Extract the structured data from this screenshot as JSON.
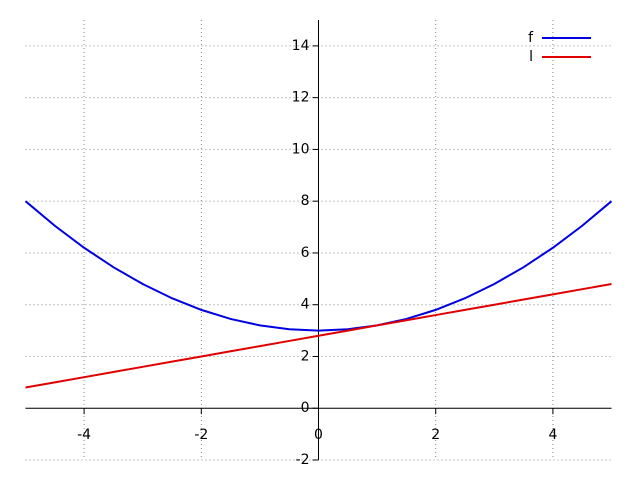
{
  "chart_data": {
    "type": "line",
    "x": [
      -5,
      -4.5,
      -4,
      -3.5,
      -3,
      -2.5,
      -2,
      -1.5,
      -1,
      -0.5,
      0,
      0.5,
      1,
      1.5,
      2,
      2.5,
      3,
      3.5,
      4,
      4.5,
      5
    ],
    "series": [
      {
        "name": "f",
        "color": "#0000e0",
        "values": [
          8,
          7.05,
          6.2,
          5.45,
          4.8,
          4.25,
          3.8,
          3.45,
          3.2,
          3.05,
          3,
          3.05,
          3.2,
          3.45,
          3.8,
          4.25,
          4.8,
          5.45,
          6.2,
          7.05,
          8
        ]
      },
      {
        "name": "l",
        "color": "#e00000",
        "values": [
          0.8,
          1.0,
          1.2,
          1.4,
          1.6,
          1.8,
          2.0,
          2.2,
          2.4,
          2.6,
          2.8,
          3.0,
          3.2,
          3.4,
          3.6,
          3.8,
          4.0,
          4.2,
          4.4,
          4.6,
          4.8
        ]
      }
    ],
    "xlim": [
      -5,
      5
    ],
    "ylim": [
      -2,
      15
    ],
    "xticks": [
      -4,
      -2,
      0,
      2,
      4
    ],
    "yticks": [
      -2,
      0,
      2,
      4,
      6,
      8,
      10,
      12,
      14
    ],
    "grid": true,
    "legend": "upper right"
  }
}
